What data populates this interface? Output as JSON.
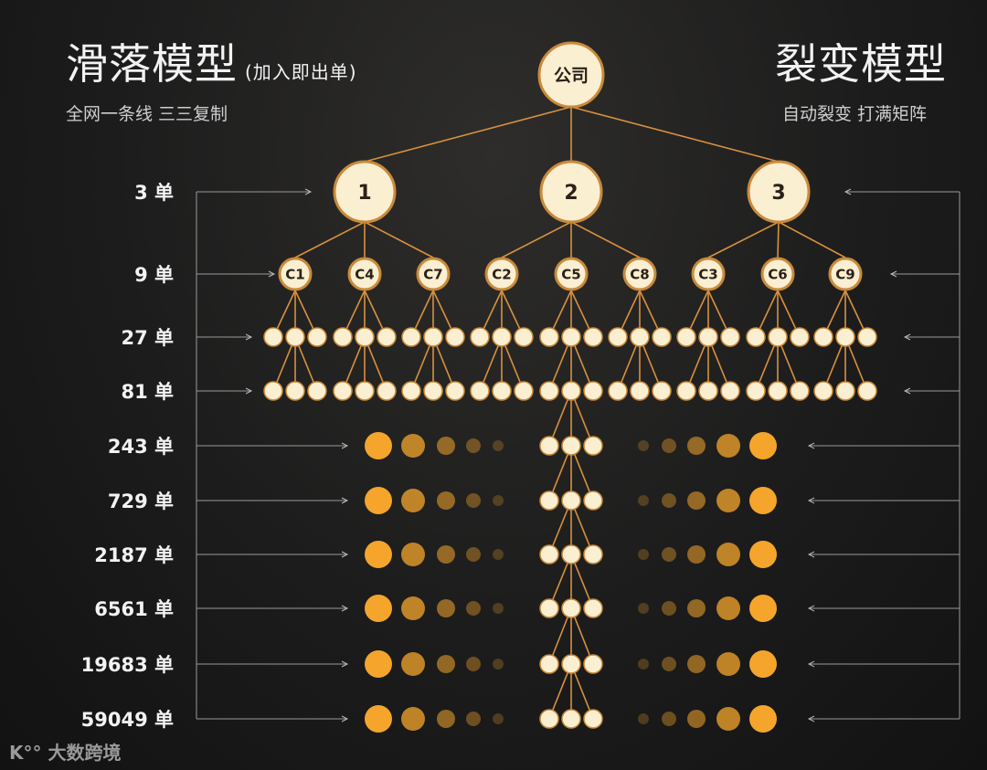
{
  "left": {
    "title": "滑落模型",
    "title_note": "(加入即出单)",
    "subtitle": "全网一条线 三三复制"
  },
  "right": {
    "title": "裂变模型",
    "subtitle": "自动裂变 打满矩阵"
  },
  "root": "公司",
  "level1": [
    "1",
    "2",
    "3"
  ],
  "level2": [
    "C1",
    "C4",
    "C7",
    "C2",
    "C5",
    "C8",
    "C3",
    "C6",
    "C9"
  ],
  "rows": [
    "3 单",
    "9 单",
    "27 单",
    "81 单",
    "243 单",
    "729 单",
    "2187 单",
    "6561 单",
    "19683 单",
    "59049 单"
  ],
  "watermark": "大数跨境",
  "colors": {
    "node": "#fbefd2",
    "line": "#d9913f",
    "orange": "#f5a52c",
    "text_dark": "#2a2118"
  }
}
